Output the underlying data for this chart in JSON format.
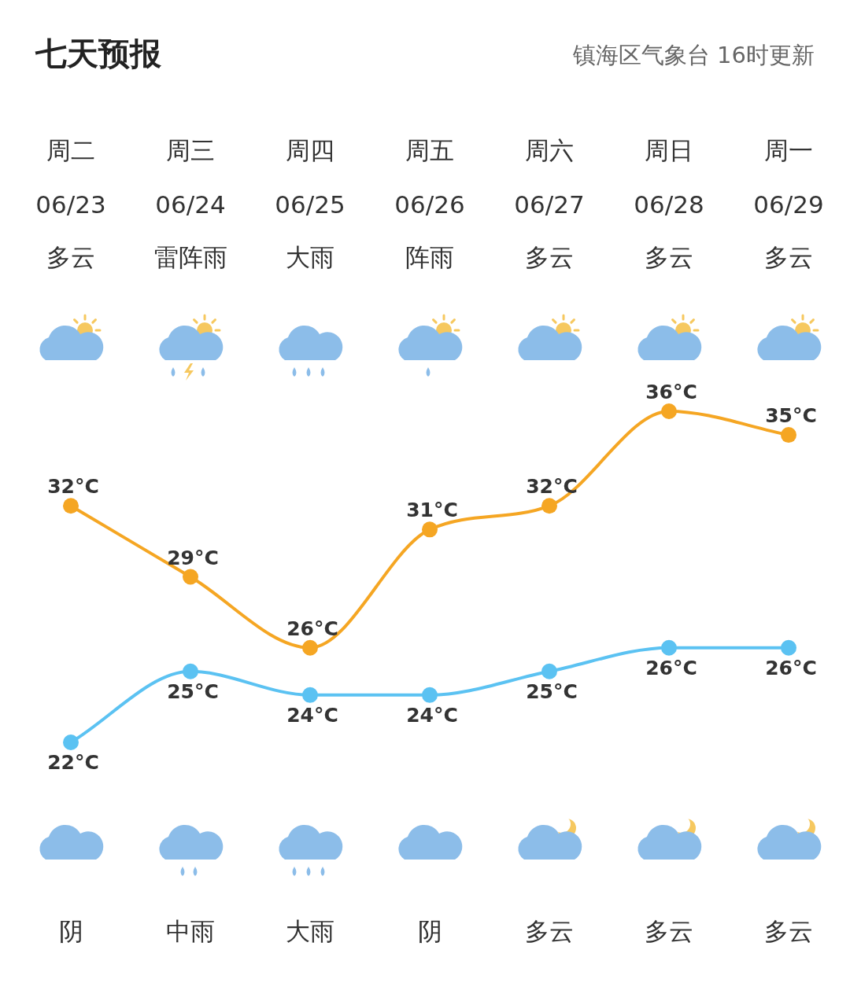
{
  "chart_data": {
    "type": "line",
    "title": "七天预报",
    "subtitle": "镇海区气象台 16时更新",
    "categories": [
      "06/23",
      "06/24",
      "06/25",
      "06/26",
      "06/27",
      "06/28",
      "06/29"
    ],
    "series": [
      {
        "color": "#f5a623",
        "values": [
          32,
          29,
          26,
          31,
          32,
          36,
          35
        ],
        "value_labels": [
          "32°C",
          "29°C",
          "26°C",
          "31°C",
          "32°C",
          "36°C",
          "35°C"
        ]
      },
      {
        "color": "#5bc2f2",
        "values": [
          22,
          25,
          24,
          24,
          25,
          26,
          26
        ],
        "value_labels": [
          "22°C",
          "25°C",
          "24°C",
          "24°C",
          "25°C",
          "26°C",
          "26°C"
        ]
      }
    ],
    "annotations": [
      "周二",
      "周三",
      "周四",
      "周五",
      "周六",
      "周日",
      "周一",
      "多云",
      "雷阵雨",
      "大雨",
      "阵雨",
      "多云",
      "多云",
      "多云",
      "阴",
      "中雨",
      "大雨",
      "阴",
      "多云",
      "多云",
      "多云"
    ],
    "marker": "circle",
    "grid": false
  }
}
